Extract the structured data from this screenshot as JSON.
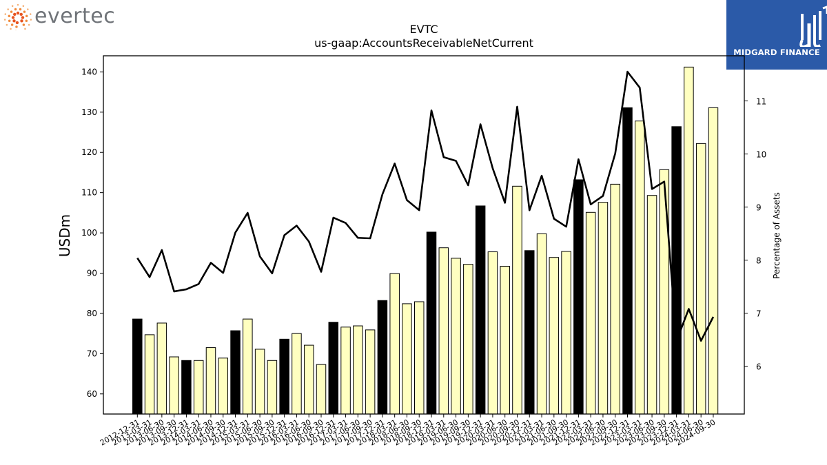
{
  "branding": {
    "left_logo_text": "evertec",
    "right_logo_text": "MIDGARD FINANCE"
  },
  "chart_data": {
    "type": "bar",
    "title": "EVTC",
    "subtitle": "us-gaap:AccountsReceivableNetCurrent",
    "ylabel": "USDm",
    "y2label": "Percentage of Assets",
    "ylim": [
      55,
      144
    ],
    "y2lim": [
      5.1,
      11.85
    ],
    "yticks": [
      60,
      70,
      80,
      90,
      100,
      110,
      120,
      130,
      140
    ],
    "y2ticks": [
      6,
      7,
      8,
      9,
      10,
      11
    ],
    "categories": [
      "2012-12-31",
      "2013-03-31",
      "2013-06-30",
      "2013-09-30",
      "2013-12-31",
      "2014-03-31",
      "2014-06-30",
      "2014-09-30",
      "2014-12-31",
      "2015-03-31",
      "2015-06-30",
      "2015-09-30",
      "2015-12-31",
      "2016-03-31",
      "2016-06-30",
      "2016-09-30",
      "2016-12-31",
      "2017-03-31",
      "2017-06-30",
      "2017-09-30",
      "2017-12-31",
      "2018-03-31",
      "2018-06-30",
      "2018-09-30",
      "2018-12-31",
      "2019-03-31",
      "2019-06-30",
      "2019-09-30",
      "2019-12-31",
      "2020-03-31",
      "2020-06-30",
      "2020-09-30",
      "2020-12-31",
      "2021-03-31",
      "2021-06-30",
      "2021-09-30",
      "2021-12-31",
      "2022-03-31",
      "2022-06-30",
      "2022-09-30",
      "2022-12-31",
      "2023-03-31",
      "2023-06-30",
      "2023-09-30",
      "2023-12-31",
      "2024-03-31",
      "2024-06-30",
      "2024-09-30"
    ],
    "series": [
      {
        "kind": "bar",
        "values": [
          78.6,
          74.7,
          77.6,
          69.2,
          68.3,
          68.3,
          71.5,
          68.9,
          75.7,
          78.6,
          71.1,
          68.3,
          73.6,
          75.0,
          72.1,
          67.3,
          77.8,
          76.6,
          76.9,
          75.9,
          83.2,
          89.9,
          82.4,
          82.9,
          100.2,
          96.3,
          93.7,
          92.2,
          106.7,
          95.3,
          91.7,
          111.6,
          95.6,
          99.8,
          93.9,
          95.4,
          113.2,
          105.1,
          107.6,
          112.1,
          131.1,
          127.8,
          109.3,
          115.7,
          126.4,
          141.2,
          122.2,
          131.1
        ],
        "year_end_color": "#000000",
        "quarter_color": "#ffffc0"
      },
      {
        "kind": "line",
        "axis": "right",
        "color": "#000000",
        "values": [
          8.04,
          7.68,
          8.19,
          7.41,
          7.45,
          7.55,
          7.95,
          7.76,
          8.52,
          8.89,
          8.07,
          7.75,
          8.47,
          8.65,
          8.35,
          7.78,
          8.8,
          8.7,
          8.42,
          8.41,
          9.24,
          9.82,
          9.13,
          8.94,
          10.82,
          9.94,
          9.87,
          9.41,
          10.56,
          9.73,
          9.08,
          10.89,
          8.94,
          9.59,
          8.78,
          8.63,
          9.9,
          9.05,
          9.21,
          10.01,
          11.55,
          11.25,
          9.34,
          9.48,
          6.48,
          7.08,
          6.48,
          6.93
        ]
      }
    ],
    "grid": false,
    "legend": "none"
  }
}
